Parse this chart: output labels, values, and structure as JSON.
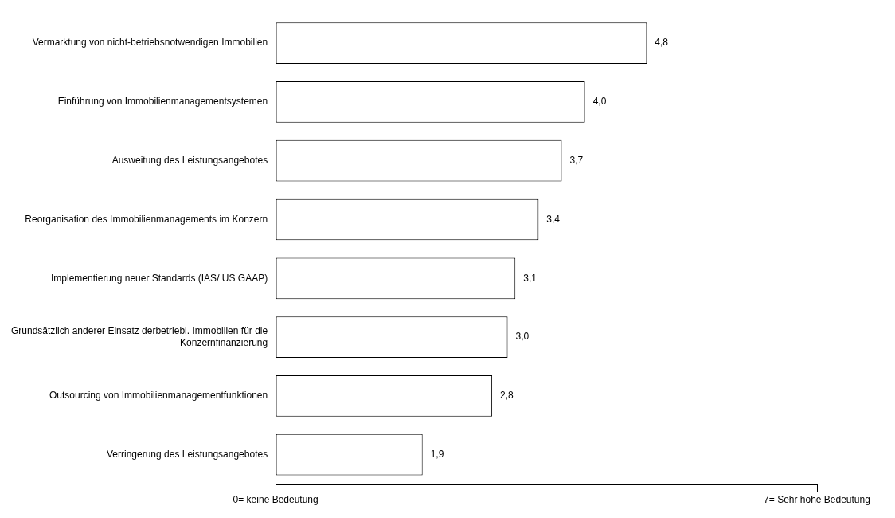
{
  "chart_data": {
    "type": "bar",
    "orientation": "horizontal",
    "categories": [
      "Vermarktung von nicht-betriebsnotwendigen Immobilien",
      "Einführung von Immobilienmanagementsystemen",
      "Ausweitung des Leistungsangebotes",
      "Reorganisation des Immobilienmanagements im Konzern",
      "Implementierung neuer Standards (IAS/ US GAAP)",
      "Grundsätzlich anderer Einsatz derbetriebl. Immobilien für die Konzernfinanzierung",
      "Outsourcing von Immobilienmanagementfunktionen",
      "Verringerung des Leistungsangebotes"
    ],
    "values": [
      4.8,
      4.0,
      3.7,
      3.4,
      3.1,
      3.0,
      2.8,
      1.9
    ],
    "value_labels": [
      "4,8",
      "4,0",
      "3,7",
      "3,4",
      "3,1",
      "3,0",
      "2,8",
      "1,9"
    ],
    "color": "#ffffff",
    "xlim": [
      0,
      7
    ],
    "xticks": [
      {
        "value": 0,
        "label": "0= keine Bedeutung"
      },
      {
        "value": 7,
        "label": "7= Sehr hohe Bedeutung"
      }
    ],
    "grid": false,
    "legend": false
  }
}
